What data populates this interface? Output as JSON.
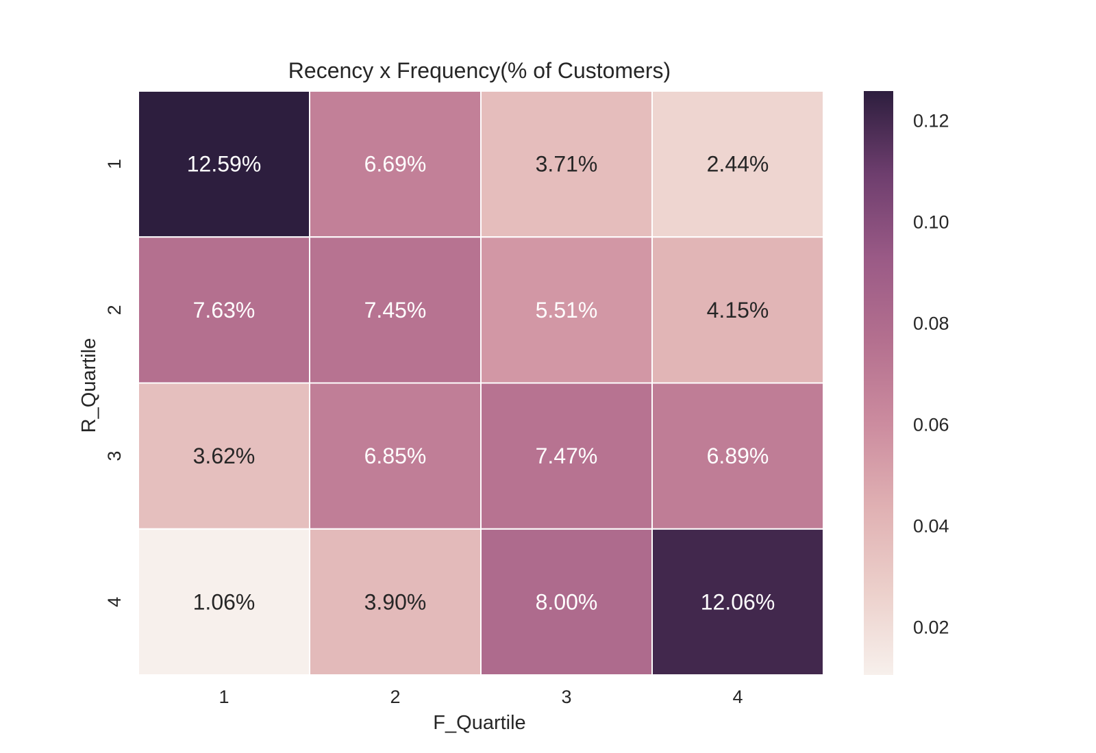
{
  "chart_data": {
    "type": "heatmap",
    "title": "Recency x Frequency(% of Customers)",
    "xlabel": "F_Quartile",
    "ylabel": "R_Quartile",
    "x_categories": [
      "1",
      "2",
      "3",
      "4"
    ],
    "y_categories": [
      "1",
      "2",
      "3",
      "4"
    ],
    "values": [
      [
        0.1259,
        0.0669,
        0.0371,
        0.0244
      ],
      [
        0.0763,
        0.0745,
        0.0551,
        0.0415
      ],
      [
        0.0362,
        0.0685,
        0.0747,
        0.0689
      ],
      [
        0.0106,
        0.039,
        0.08,
        0.1206
      ]
    ],
    "cell_labels": [
      [
        "12.59%",
        "6.69%",
        "3.71%",
        "2.44%"
      ],
      [
        "7.63%",
        "7.45%",
        "5.51%",
        "4.15%"
      ],
      [
        "3.62%",
        "6.85%",
        "7.47%",
        "6.89%"
      ],
      [
        "1.06%",
        "3.90%",
        "8.00%",
        "12.06%"
      ]
    ],
    "colorbar": {
      "range": [
        0.0106,
        0.1259
      ],
      "ticks": [
        0.02,
        0.04,
        0.06,
        0.08,
        0.1,
        0.12
      ],
      "tick_labels": [
        "0.02",
        "0.04",
        "0.06",
        "0.08",
        "0.10",
        "0.12"
      ],
      "colors": [
        "#f7f0ec",
        "#ecd0cb",
        "#e0b1b3",
        "#cc8c9f",
        "#b4708f",
        "#9a5a86",
        "#6e3e6e",
        "#2d1e3e"
      ]
    },
    "grid": false
  }
}
